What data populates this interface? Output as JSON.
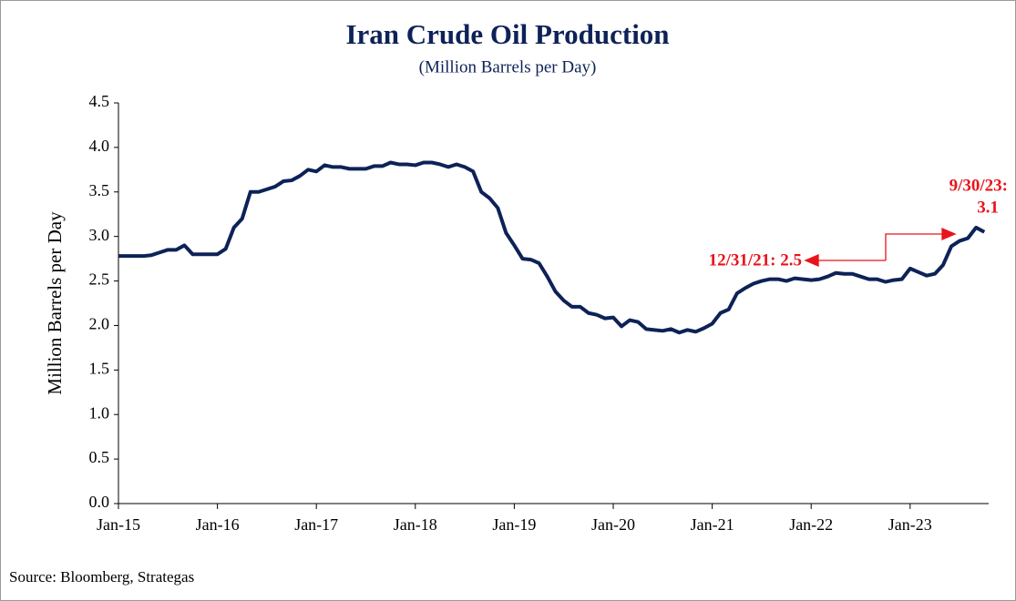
{
  "chart_data": {
    "type": "line",
    "title": "Iran Crude Oil Production",
    "subtitle": "(Million Barrels per Day)",
    "y_label": "Million Barrels per Day",
    "source": "Source: Bloomberg, Strategas",
    "annotations": [
      [
        "12/31/21: 2.5"
      ],
      [
        "9/30/23:",
        "3.1"
      ]
    ],
    "color": "#0d2257",
    "categories": [
      "Jan-15",
      null,
      null,
      null,
      null,
      null,
      null,
      null,
      null,
      null,
      null,
      null,
      "Jan-16",
      null,
      null,
      null,
      null,
      null,
      null,
      null,
      null,
      null,
      null,
      null,
      "Jan-17",
      null,
      null,
      null,
      null,
      null,
      null,
      null,
      null,
      null,
      null,
      null,
      "Jan-18",
      null,
      null,
      null,
      null,
      null,
      null,
      null,
      null,
      null,
      null,
      null,
      "Jan-19",
      null,
      null,
      null,
      null,
      null,
      null,
      null,
      null,
      null,
      null,
      null,
      "Jan-20",
      null,
      null,
      null,
      null,
      null,
      null,
      null,
      null,
      null,
      null,
      null,
      "Jan-21",
      null,
      null,
      null,
      null,
      null,
      null,
      null,
      null,
      null,
      null,
      null,
      "Jan-22",
      null,
      null,
      null,
      null,
      null,
      null,
      null,
      null,
      null,
      null,
      null,
      "Jan-23",
      null,
      null,
      null,
      null,
      null,
      null,
      null,
      null,
      null
    ],
    "values": [
      2.78,
      2.78,
      2.78,
      2.78,
      2.79,
      2.82,
      2.85,
      2.85,
      2.9,
      2.8,
      2.8,
      2.8,
      2.8,
      2.86,
      3.1,
      3.2,
      3.5,
      3.5,
      3.53,
      3.56,
      3.62,
      3.63,
      3.68,
      3.75,
      3.73,
      3.8,
      3.78,
      3.78,
      3.76,
      3.76,
      3.76,
      3.79,
      3.79,
      3.83,
      3.81,
      3.81,
      3.8,
      3.83,
      3.83,
      3.81,
      3.78,
      3.81,
      3.78,
      3.73,
      3.5,
      3.43,
      3.32,
      3.04,
      2.9,
      2.75,
      2.74,
      2.7,
      2.55,
      2.38,
      2.28,
      2.21,
      2.21,
      2.14,
      2.12,
      2.08,
      2.09,
      1.99,
      2.06,
      2.04,
      1.96,
      1.95,
      1.94,
      1.96,
      1.92,
      1.95,
      1.93,
      1.97,
      2.02,
      2.14,
      2.18,
      2.36,
      2.42,
      2.47,
      2.5,
      2.52,
      2.52,
      2.5,
      2.53,
      2.52,
      2.51,
      2.52,
      2.55,
      2.59,
      2.58,
      2.58,
      2.55,
      2.52,
      2.52,
      2.49,
      2.51,
      2.52,
      2.64,
      2.6,
      2.56,
      2.58,
      2.68,
      2.89,
      2.95,
      2.98,
      3.1,
      3.05
    ],
    "ylim": [
      0,
      4.5
    ],
    "yticks": [
      {
        "value": 0,
        "label": "0.0"
      },
      0.5,
      {
        "value": 1,
        "label": "1.0"
      },
      1.5,
      {
        "value": 2,
        "label": "2.0"
      },
      2.5,
      {
        "value": 3,
        "label": "3.0"
      },
      3.5,
      {
        "value": 4,
        "label": "4.0"
      },
      4.5
    ],
    "grid": false
  }
}
